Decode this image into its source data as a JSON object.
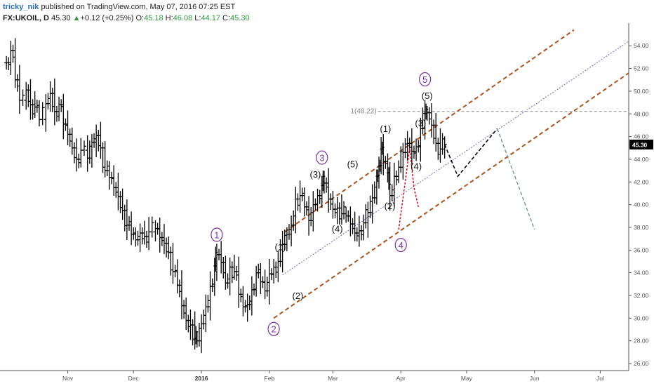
{
  "header": {
    "user": "tricky_nik",
    "published_text": "published on TradingView.com, May 07, 2016 07:25 EST",
    "symbol": "FX:UKOIL, D",
    "last": "45.30",
    "change_arrow": "▲",
    "change": "+0.12 (+0.25%)",
    "o_label": "O:",
    "o_value": "45.18",
    "h_label": "H:",
    "h_value": "46.08",
    "l_label": "L:",
    "l_value": "44.17",
    "c_label": "C:",
    "c_value": "45.30"
  },
  "chart_data": {
    "type": "ohlc",
    "symbol": "FX:UKOIL",
    "interval": "D",
    "last_price": 45.3,
    "ylim": [
      25.5,
      55.5
    ],
    "y_ticks": [
      "26.00",
      "28.00",
      "30.00",
      "32.00",
      "34.00",
      "36.00",
      "38.00",
      "40.00",
      "42.00",
      "44.00",
      "46.00",
      "48.00",
      "50.00",
      "52.00",
      "54.00"
    ],
    "last_price_label": "45.30",
    "x_labels": [
      {
        "text": "Nov",
        "bold": false,
        "day": 35
      },
      {
        "text": "Dec",
        "bold": false,
        "day": 65
      },
      {
        "text": "2016",
        "bold": true,
        "day": 96
      },
      {
        "text": "Feb",
        "bold": false,
        "day": 127
      },
      {
        "text": "Mar",
        "bold": false,
        "day": 156
      },
      {
        "text": "Apr",
        "bold": false,
        "day": 187
      },
      {
        "text": "May",
        "bold": false,
        "day": 217
      },
      {
        "text": "Jun",
        "bold": false,
        "day": 248
      },
      {
        "text": "Jul",
        "bold": false,
        "day": 278
      }
    ],
    "xlim_days": [
      6,
      291
    ],
    "price_path": [
      [
        7,
        52.5
      ],
      [
        9,
        53.6
      ],
      [
        11,
        51.0
      ],
      [
        13,
        49.2
      ],
      [
        16,
        50.1
      ],
      [
        18,
        48.8
      ],
      [
        20,
        48.6
      ],
      [
        22,
        47.5
      ],
      [
        25,
        48.9
      ],
      [
        27,
        49.8
      ],
      [
        29,
        48.2
      ],
      [
        31,
        48.8
      ],
      [
        33,
        47.1
      ],
      [
        35,
        46.2
      ],
      [
        37,
        45.0
      ],
      [
        39,
        44.0
      ],
      [
        41,
        44.8
      ],
      [
        44,
        44.1
      ],
      [
        46,
        45.5
      ],
      [
        48,
        46.1
      ],
      [
        50,
        45.0
      ],
      [
        52,
        43.0
      ],
      [
        54,
        42.4
      ],
      [
        56,
        41.5
      ],
      [
        58,
        40.7
      ],
      [
        60,
        39.5
      ],
      [
        62,
        38.2
      ],
      [
        64,
        37.4
      ],
      [
        66,
        36.9
      ],
      [
        68,
        37.5
      ],
      [
        70,
        37.2
      ],
      [
        72,
        37.6
      ],
      [
        75,
        37.9
      ],
      [
        77,
        37.1
      ],
      [
        79,
        36.6
      ],
      [
        81,
        35.8
      ],
      [
        83,
        34.1
      ],
      [
        85,
        32.9
      ],
      [
        87,
        31.1
      ],
      [
        89,
        29.8
      ],
      [
        91,
        29.4
      ],
      [
        93,
        28.2
      ],
      [
        94,
        28.0
      ],
      [
        96,
        29.5
      ],
      [
        98,
        31.0
      ],
      [
        100,
        32.8
      ],
      [
        102,
        34.6
      ],
      [
        103,
        35.6
      ],
      [
        105,
        34.9
      ],
      [
        107,
        33.1
      ],
      [
        109,
        34.5
      ],
      [
        111,
        34.1
      ],
      [
        113,
        32.1
      ],
      [
        115,
        31.0
      ],
      [
        117,
        31.2
      ],
      [
        119,
        32.5
      ],
      [
        121,
        34.0
      ],
      [
        123,
        33.2
      ],
      [
        125,
        32.4
      ],
      [
        127,
        33.9
      ],
      [
        129,
        34.5
      ],
      [
        131,
        35.0
      ],
      [
        133,
        36.5
      ],
      [
        135,
        37.4
      ],
      [
        137,
        38.2
      ],
      [
        139,
        40.5
      ],
      [
        141,
        40.8
      ],
      [
        143,
        39.8
      ],
      [
        145,
        38.6
      ],
      [
        147,
        40.0
      ],
      [
        149,
        40.8
      ],
      [
        151,
        41.7
      ],
      [
        152,
        41.9
      ],
      [
        154,
        40.5
      ],
      [
        156,
        39.6
      ],
      [
        158,
        39.7
      ],
      [
        160,
        39.2
      ],
      [
        162,
        39.0
      ],
      [
        164,
        38.3
      ],
      [
        166,
        37.5
      ],
      [
        168,
        37.7
      ],
      [
        170,
        38.4
      ],
      [
        172,
        39.3
      ],
      [
        174,
        40.6
      ],
      [
        176,
        42.5
      ],
      [
        177,
        43.4
      ],
      [
        178,
        44.9
      ],
      [
        179,
        43.8
      ],
      [
        181,
        42.8
      ],
      [
        182,
        40.8
      ],
      [
        184,
        42.5
      ],
      [
        186,
        43.3
      ],
      [
        188,
        44.6
      ],
      [
        190,
        45.4
      ],
      [
        192,
        44.7
      ],
      [
        194,
        45.1
      ],
      [
        196,
        46.7
      ],
      [
        198,
        48.0
      ],
      [
        199,
        48.1
      ],
      [
        201,
        47.0
      ],
      [
        203,
        45.4
      ],
      [
        205,
        44.9
      ],
      [
        207,
        45.3
      ]
    ],
    "plotted_high": [
      [
        12,
        54.1
      ],
      [
        94,
        27.0
      ],
      [
        103,
        36.1
      ],
      [
        152,
        42.4
      ],
      [
        178,
        45.2
      ],
      [
        199,
        48.22
      ]
    ],
    "projection": [
      [
        207,
        45.3
      ],
      [
        213,
        42.5
      ],
      [
        231,
        46.7
      ],
      [
        248,
        37.8
      ]
    ],
    "channel": {
      "upper": [
        [
          134,
          37.6
        ],
        [
          266,
          55.4
        ]
      ],
      "lower": [
        [
          129,
          30.0
        ],
        [
          291,
          51.6
        ]
      ],
      "mid": [
        [
          133,
          33.8
        ],
        [
          291,
          54.4
        ]
      ]
    },
    "fib_level": {
      "label": "1(48.22)",
      "value": 48.22,
      "from_day": 199
    },
    "annotations": [
      {
        "text": "1",
        "style": "circle",
        "day": 103,
        "price": 37.1
      },
      {
        "text": "2",
        "style": "circle",
        "day": 129,
        "price": 28.8
      },
      {
        "text": "3",
        "style": "circle",
        "day": 151,
        "price": 43.9
      },
      {
        "text": "4",
        "style": "circle",
        "day": 187,
        "price": 36.2
      },
      {
        "text": "5",
        "style": "circle",
        "day": 198,
        "price": 50.8
      },
      {
        "text": "(1)",
        "style": "paren",
        "day": 132,
        "price": 36.0
      },
      {
        "text": "(2)",
        "style": "paren",
        "day": 140,
        "price": 31.7
      },
      {
        "text": "(3)",
        "style": "paren",
        "day": 148,
        "price": 42.4
      },
      {
        "text": "(4)",
        "style": "paren",
        "day": 158,
        "price": 37.6
      },
      {
        "text": "(5)",
        "style": "paren",
        "day": 165,
        "price": 43.3
      },
      {
        "text": "(1)",
        "style": "paren",
        "day": 180,
        "price": 46.4
      },
      {
        "text": "(2)",
        "style": "paren",
        "day": 182,
        "price": 39.6
      },
      {
        "text": "(3)",
        "style": "paren",
        "day": 196,
        "price": 46.9
      },
      {
        "text": "(4)",
        "style": "paren",
        "day": 194,
        "price": 43.1
      },
      {
        "text": "(5)",
        "style": "paren",
        "day": 199,
        "price": 49.3
      }
    ],
    "colors": {
      "bars": "#000000",
      "channel": "#b0531a",
      "midline": "#6a6ac8",
      "projection": "#000000",
      "projection_alt": "#6a9e8c",
      "red_dashes": "#d0121f",
      "fib": "#888888",
      "purple": "#7a2fa8",
      "axis_text": "#555555"
    }
  }
}
